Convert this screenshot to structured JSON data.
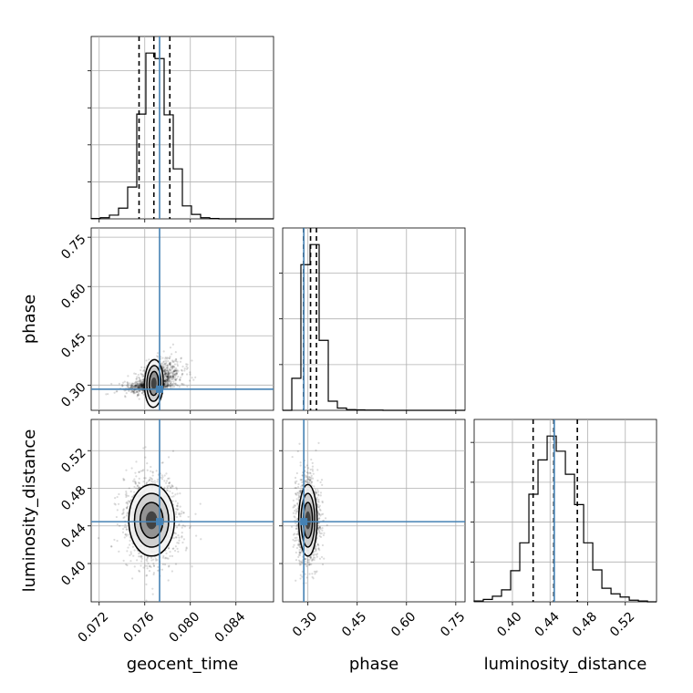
{
  "chart_data": {
    "type": "corner",
    "parameters": [
      "geocent_time",
      "phase",
      "luminosity_distance"
    ],
    "truths": [
      0.0773,
      0.2875,
      0.4445
    ],
    "quantile_lines": [
      [
        0.0755,
        0.0768,
        0.0782
      ],
      [
        0.287,
        0.308,
        0.326
      ],
      [
        0.422,
        0.444,
        0.469
      ]
    ],
    "ranges": [
      [
        0.0713,
        0.0873
      ],
      [
        0.2232,
        0.7782
      ],
      [
        0.3593,
        0.5532
      ]
    ],
    "ticks": [
      [
        "0.072",
        "0.076",
        "0.080",
        "0.084"
      ],
      [
        "0.30",
        "0.45",
        "0.60",
        "0.75"
      ],
      [
        "0.40",
        "0.44",
        "0.48",
        "0.52"
      ]
    ],
    "histograms": [
      {
        "param": "geocent_time",
        "edges": [
          0.0713,
          0.0721,
          0.0729,
          0.0737,
          0.0745,
          0.0753,
          0.0761,
          0.0769,
          0.0777,
          0.0785,
          0.0793,
          0.0801,
          0.0809,
          0.0817,
          0.0825,
          0.0833,
          0.0841,
          0.0849,
          0.0857,
          0.0865,
          0.0873
        ],
        "counts": [
          1,
          3,
          10,
          29,
          86,
          283,
          448,
          433,
          281,
          135,
          35,
          12,
          3,
          1,
          0,
          0,
          0,
          0,
          0,
          0
        ]
      },
      {
        "param": "phase",
        "edges": [
          0.2232,
          0.251,
          0.2787,
          0.3065,
          0.3342,
          0.362,
          0.3897,
          0.4175,
          0.4452,
          0.473,
          0.5007,
          0.5285,
          0.5562,
          0.584,
          0.6117,
          0.6395,
          0.6672,
          0.695,
          0.7227,
          0.7505,
          0.7782
        ],
        "counts": [
          0,
          140,
          637,
          725,
          306,
          40,
          10,
          3,
          2,
          1,
          1,
          0,
          0,
          0,
          0,
          0,
          0,
          0,
          0,
          0
        ]
      },
      {
        "param": "luminosity_distance",
        "edges": [
          0.3593,
          0.369,
          0.3787,
          0.3884,
          0.3981,
          0.4078,
          0.4175,
          0.4272,
          0.4369,
          0.4466,
          0.4563,
          0.466,
          0.4757,
          0.4854,
          0.4951,
          0.5048,
          0.5145,
          0.5242,
          0.5339,
          0.5436,
          0.5532
        ],
        "counts": [
          1,
          3,
          7,
          15,
          39,
          74,
          135,
          178,
          208,
          189,
          160,
          122,
          74,
          40,
          17,
          10,
          6,
          2,
          1,
          0
        ]
      }
    ],
    "contour_panels": [
      {
        "x_param": "geocent_time",
        "y_param": "phase",
        "center": [
          0.0768,
          0.305
        ],
        "spread": [
          0.0009,
          0.017
        ],
        "correlation": 0.55,
        "levels_sigma": [
          0.5,
          1.0,
          1.5,
          2.0
        ]
      },
      {
        "x_param": "geocent_time",
        "y_param": "luminosity_distance",
        "center": [
          0.0766,
          0.446
        ],
        "spread": [
          0.001,
          0.019
        ],
        "correlation": 0.0,
        "levels_sigma": [
          0.5,
          1.0,
          1.5,
          2.0
        ]
      },
      {
        "x_param": "phase",
        "y_param": "luminosity_distance",
        "center": [
          0.3,
          0.446
        ],
        "spread": [
          0.014,
          0.019
        ],
        "correlation": 0.0,
        "levels_sigma": [
          0.5,
          1.0,
          1.5,
          2.0
        ]
      }
    ],
    "grid": true,
    "truth_color": "#4682b4",
    "line_color": "#000000"
  }
}
